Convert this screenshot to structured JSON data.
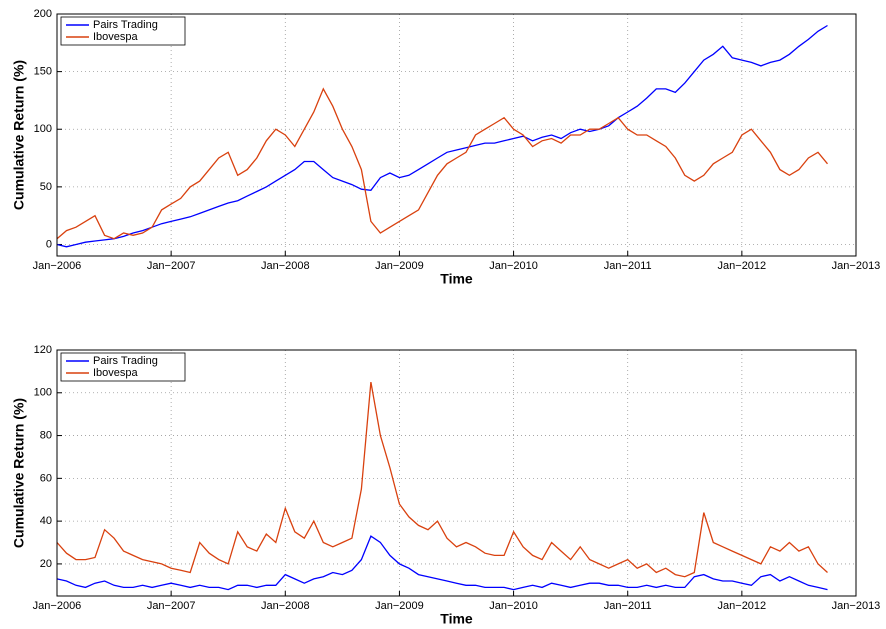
{
  "chart_data": [
    {
      "type": "line",
      "xlabel": "Time",
      "ylabel": "Cumulative Return (%)",
      "xlim": [
        "2006-01",
        "2013-01"
      ],
      "xticks": [
        {
          "value": "2006-01",
          "label": "Jan−2006"
        },
        {
          "value": "2007-01",
          "label": "Jan−2007"
        },
        {
          "value": "2008-01",
          "label": "Jan−2008"
        },
        {
          "value": "2009-01",
          "label": "Jan−2009"
        },
        {
          "value": "2010-01",
          "label": "Jan−2010"
        },
        {
          "value": "2011-01",
          "label": "Jan−2011"
        },
        {
          "value": "2012-01",
          "label": "Jan−2012"
        },
        {
          "value": "2013-01",
          "label": "Jan−2013"
        }
      ],
      "ylim": [
        -10,
        200
      ],
      "yticks": [
        0,
        50,
        100,
        150,
        200
      ],
      "grid": true,
      "legend": "upper-left",
      "x": [
        "2006-01",
        "2006-02",
        "2006-03",
        "2006-04",
        "2006-05",
        "2006-06",
        "2006-07",
        "2006-08",
        "2006-09",
        "2006-10",
        "2006-11",
        "2006-12",
        "2007-01",
        "2007-02",
        "2007-03",
        "2007-04",
        "2007-05",
        "2007-06",
        "2007-07",
        "2007-08",
        "2007-09",
        "2007-10",
        "2007-11",
        "2007-12",
        "2008-01",
        "2008-02",
        "2008-03",
        "2008-04",
        "2008-05",
        "2008-06",
        "2008-07",
        "2008-08",
        "2008-09",
        "2008-10",
        "2008-11",
        "2008-12",
        "2009-01",
        "2009-02",
        "2009-03",
        "2009-04",
        "2009-05",
        "2009-06",
        "2009-07",
        "2009-08",
        "2009-09",
        "2009-10",
        "2009-11",
        "2009-12",
        "2010-01",
        "2010-02",
        "2010-03",
        "2010-04",
        "2010-05",
        "2010-06",
        "2010-07",
        "2010-08",
        "2010-09",
        "2010-10",
        "2010-11",
        "2010-12",
        "2011-01",
        "2011-02",
        "2011-03",
        "2011-04",
        "2011-05",
        "2011-06",
        "2011-07",
        "2011-08",
        "2011-09",
        "2011-10",
        "2011-11",
        "2011-12",
        "2012-01",
        "2012-02",
        "2012-03",
        "2012-04",
        "2012-05",
        "2012-06",
        "2012-07",
        "2012-08",
        "2012-09",
        "2012-10"
      ],
      "series": [
        {
          "name": "Pairs Trading",
          "color": "#0000ff",
          "values": [
            0,
            -2,
            0,
            2,
            3,
            4,
            5,
            7,
            10,
            12,
            15,
            18,
            20,
            22,
            24,
            27,
            30,
            33,
            36,
            38,
            42,
            46,
            50,
            55,
            60,
            65,
            72,
            72,
            65,
            58,
            55,
            52,
            48,
            47,
            58,
            62,
            58,
            60,
            65,
            70,
            75,
            80,
            82,
            84,
            86,
            88,
            88,
            90,
            92,
            94,
            90,
            93,
            95,
            92,
            97,
            100,
            98,
            100,
            103,
            110,
            115,
            120,
            127,
            135,
            135,
            132,
            140,
            150,
            160,
            165,
            172,
            162,
            160,
            158,
            155,
            158,
            160,
            165,
            172,
            178,
            185,
            190
          ]
        },
        {
          "name": "Ibovespa",
          "color": "#d9410f",
          "values": [
            5,
            12,
            15,
            20,
            25,
            8,
            5,
            10,
            8,
            10,
            15,
            30,
            35,
            40,
            50,
            55,
            65,
            75,
            80,
            60,
            65,
            75,
            90,
            100,
            95,
            85,
            100,
            115,
            135,
            120,
            100,
            85,
            65,
            20,
            10,
            15,
            20,
            25,
            30,
            45,
            60,
            70,
            75,
            80,
            95,
            100,
            105,
            110,
            100,
            95,
            85,
            90,
            92,
            88,
            95,
            95,
            100,
            100,
            105,
            110,
            100,
            95,
            95,
            90,
            85,
            75,
            60,
            55,
            60,
            70,
            75,
            80,
            95,
            100,
            90,
            80,
            65,
            60,
            65,
            75,
            80,
            70
          ]
        }
      ]
    },
    {
      "type": "line",
      "xlabel": "Time",
      "ylabel": "Cumulative Return (%)",
      "xlim": [
        "2006-01",
        "2013-01"
      ],
      "xticks": [
        {
          "value": "2006-01",
          "label": "Jan−2006"
        },
        {
          "value": "2007-01",
          "label": "Jan−2007"
        },
        {
          "value": "2008-01",
          "label": "Jan−2008"
        },
        {
          "value": "2009-01",
          "label": "Jan−2009"
        },
        {
          "value": "2010-01",
          "label": "Jan−2010"
        },
        {
          "value": "2011-01",
          "label": "Jan−2011"
        },
        {
          "value": "2012-01",
          "label": "Jan−2012"
        },
        {
          "value": "2013-01",
          "label": "Jan−2013"
        }
      ],
      "ylim": [
        5,
        120
      ],
      "yticks": [
        20,
        40,
        60,
        80,
        100,
        120
      ],
      "grid": true,
      "legend": "upper-left",
      "x": [
        "2006-01",
        "2006-02",
        "2006-03",
        "2006-04",
        "2006-05",
        "2006-06",
        "2006-07",
        "2006-08",
        "2006-09",
        "2006-10",
        "2006-11",
        "2006-12",
        "2007-01",
        "2007-02",
        "2007-03",
        "2007-04",
        "2007-05",
        "2007-06",
        "2007-07",
        "2007-08",
        "2007-09",
        "2007-10",
        "2007-11",
        "2007-12",
        "2008-01",
        "2008-02",
        "2008-03",
        "2008-04",
        "2008-05",
        "2008-06",
        "2008-07",
        "2008-08",
        "2008-09",
        "2008-10",
        "2008-11",
        "2008-12",
        "2009-01",
        "2009-02",
        "2009-03",
        "2009-04",
        "2009-05",
        "2009-06",
        "2009-07",
        "2009-08",
        "2009-09",
        "2009-10",
        "2009-11",
        "2009-12",
        "2010-01",
        "2010-02",
        "2010-03",
        "2010-04",
        "2010-05",
        "2010-06",
        "2010-07",
        "2010-08",
        "2010-09",
        "2010-10",
        "2010-11",
        "2010-12",
        "2011-01",
        "2011-02",
        "2011-03",
        "2011-04",
        "2011-05",
        "2011-06",
        "2011-07",
        "2011-08",
        "2011-09",
        "2011-10",
        "2011-11",
        "2011-12",
        "2012-01",
        "2012-02",
        "2012-03",
        "2012-04",
        "2012-05",
        "2012-06",
        "2012-07",
        "2012-08",
        "2012-09",
        "2012-10"
      ],
      "series": [
        {
          "name": "Pairs Trading",
          "color": "#0000ff",
          "values": [
            13,
            12,
            10,
            9,
            11,
            12,
            10,
            9,
            9,
            10,
            9,
            10,
            11,
            10,
            9,
            10,
            9,
            9,
            8,
            10,
            10,
            9,
            10,
            10,
            15,
            13,
            11,
            13,
            14,
            16,
            15,
            17,
            22,
            33,
            30,
            24,
            20,
            18,
            15,
            14,
            13,
            12,
            11,
            10,
            10,
            9,
            9,
            9,
            8,
            9,
            10,
            9,
            11,
            10,
            9,
            10,
            11,
            11,
            10,
            10,
            9,
            9,
            10,
            9,
            10,
            9,
            9,
            14,
            15,
            13,
            12,
            12,
            11,
            10,
            14,
            15,
            12,
            14,
            12,
            10,
            9,
            8
          ]
        },
        {
          "name": "Ibovespa",
          "color": "#d9410f",
          "values": [
            30,
            25,
            22,
            22,
            23,
            36,
            32,
            26,
            24,
            22,
            21,
            20,
            18,
            17,
            16,
            30,
            25,
            22,
            20,
            35,
            28,
            26,
            34,
            30,
            46,
            35,
            32,
            40,
            30,
            28,
            30,
            32,
            55,
            105,
            80,
            65,
            48,
            42,
            38,
            36,
            40,
            32,
            28,
            30,
            28,
            25,
            24,
            24,
            35,
            28,
            24,
            22,
            30,
            26,
            22,
            28,
            22,
            20,
            18,
            20,
            22,
            18,
            20,
            16,
            18,
            15,
            14,
            16,
            44,
            30,
            28,
            26,
            24,
            22,
            20,
            28,
            26,
            30,
            26,
            28,
            20,
            16
          ]
        }
      ]
    }
  ]
}
